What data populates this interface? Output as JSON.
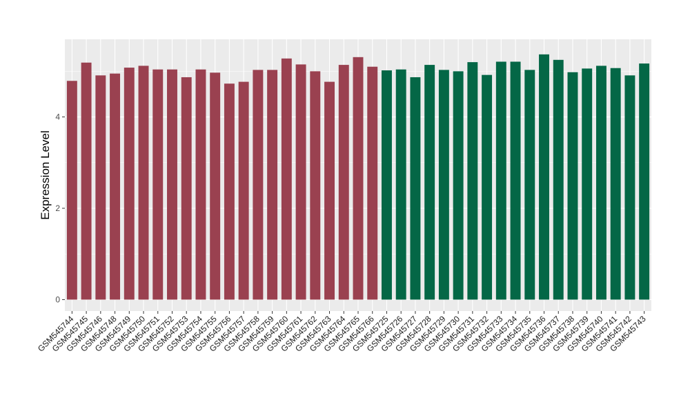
{
  "chart_data": {
    "type": "bar",
    "title": "",
    "xlabel": "",
    "ylabel": "Expression Level",
    "ylim": [
      -0.25,
      5.7
    ],
    "yticks": [
      0,
      2,
      4
    ],
    "grid": true,
    "legend": "none",
    "categories": [
      "GSM545744",
      "GSM545745",
      "GSM545746",
      "GSM545748",
      "GSM545749",
      "GSM545750",
      "GSM545751",
      "GSM545752",
      "GSM545753",
      "GSM545754",
      "GSM545755",
      "GSM545756",
      "GSM545757",
      "GSM545758",
      "GSM545759",
      "GSM545760",
      "GSM545761",
      "GSM545762",
      "GSM545763",
      "GSM545764",
      "GSM545765",
      "GSM545766",
      "GSM545725",
      "GSM545726",
      "GSM545727",
      "GSM545728",
      "GSM545729",
      "GSM545730",
      "GSM545731",
      "GSM545732",
      "GSM545733",
      "GSM545734",
      "GSM545735",
      "GSM545736",
      "GSM545737",
      "GSM545738",
      "GSM545739",
      "GSM545740",
      "GSM545741",
      "GSM545742",
      "GSM545743"
    ],
    "values": [
      4.79,
      5.19,
      4.91,
      4.95,
      5.08,
      5.12,
      5.04,
      5.04,
      4.87,
      5.04,
      4.97,
      4.73,
      4.77,
      5.03,
      5.03,
      5.28,
      5.15,
      5.0,
      4.77,
      5.14,
      5.31,
      5.1,
      5.02,
      5.04,
      4.87,
      5.14,
      5.03,
      5.0,
      5.2,
      4.92,
      5.21,
      5.21,
      5.03,
      5.37,
      5.25,
      4.98,
      5.06,
      5.12,
      5.07,
      4.91,
      5.17
    ],
    "groups": [
      "group1",
      "group1",
      "group1",
      "group1",
      "group1",
      "group1",
      "group1",
      "group1",
      "group1",
      "group1",
      "group1",
      "group1",
      "group1",
      "group1",
      "group1",
      "group1",
      "group1",
      "group1",
      "group1",
      "group1",
      "group1",
      "group1",
      "group2",
      "group2",
      "group2",
      "group2",
      "group2",
      "group2",
      "group2",
      "group2",
      "group2",
      "group2",
      "group2",
      "group2",
      "group2",
      "group2",
      "group2",
      "group2",
      "group2",
      "group2",
      "group2"
    ],
    "colors": {
      "group1": "#9a4150",
      "group2": "#046746",
      "panel": "#ebebeb",
      "grid": "#ffffff"
    }
  }
}
